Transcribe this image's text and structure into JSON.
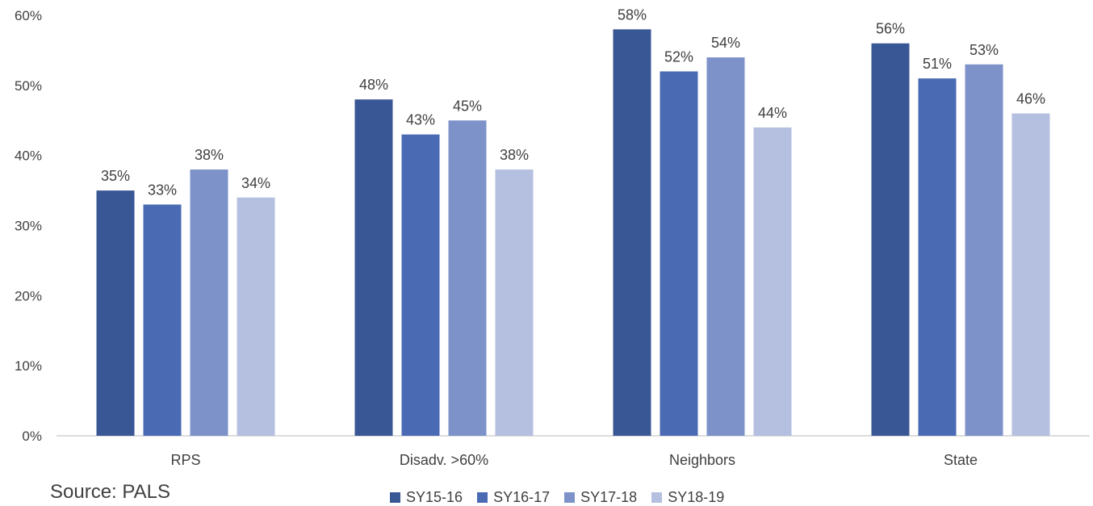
{
  "chart_data": {
    "type": "bar",
    "categories": [
      "RPS",
      "Disadv. >60%",
      "Neighbors",
      "State"
    ],
    "series": [
      {
        "name": "SY15-16",
        "values": [
          35,
          48,
          58,
          56
        ],
        "color": "#3A5795"
      },
      {
        "name": "SY16-17",
        "values": [
          33,
          43,
          52,
          51
        ],
        "color": "#4A6BB3"
      },
      {
        "name": "SY17-18",
        "values": [
          38,
          45,
          54,
          53
        ],
        "color": "#7E92CA"
      },
      {
        "name": "SY18-19",
        "values": [
          34,
          38,
          44,
          46
        ],
        "color": "#B5BFDF"
      }
    ],
    "ylim": [
      0,
      60
    ],
    "yticks": [
      "0%",
      "10%",
      "20%",
      "30%",
      "40%",
      "50%",
      "60%"
    ],
    "value_suffix": "%",
    "grid": false,
    "legend_position": "bottom"
  },
  "source_note": "Source: PALS"
}
